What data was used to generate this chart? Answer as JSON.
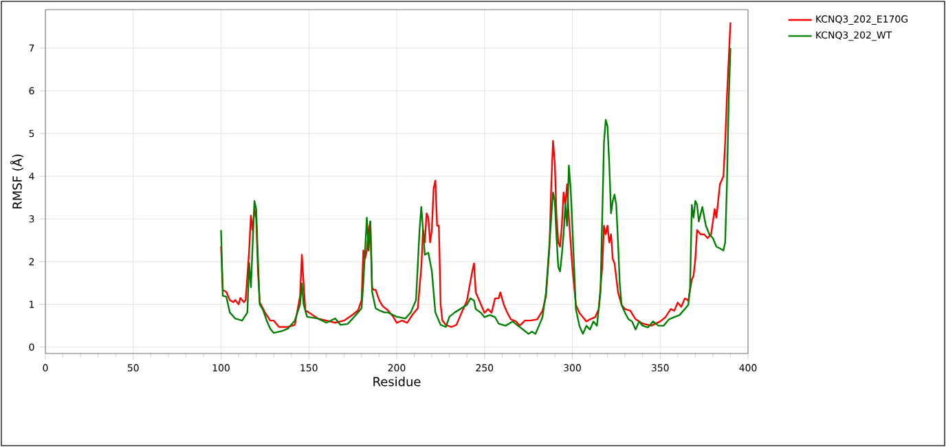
{
  "chart_data": {
    "type": "line",
    "xlabel": "Residue",
    "ylabel": "RMSF (Å)",
    "xlim": [
      0,
      400
    ],
    "xticks": [
      0,
      50,
      100,
      150,
      200,
      250,
      300,
      350,
      400
    ],
    "ylim": [
      -0.15,
      7.9
    ],
    "yticks": [
      0,
      1,
      2,
      3,
      4,
      5,
      6,
      7
    ],
    "grid": true,
    "legend": "top right",
    "marker": "none",
    "line_style": "solid",
    "series": [
      {
        "name": "KCNQ3_202_E170G",
        "color": "#ff0000",
        "x": [
          100,
          101,
          103,
          105,
          107,
          108,
          110,
          111,
          113,
          114,
          116,
          117,
          118,
          119,
          120,
          121,
          122,
          125,
          128,
          130,
          133,
          138,
          142,
          145,
          146,
          147,
          148,
          150,
          155,
          160,
          165,
          170,
          175,
          178,
          180,
          181,
          182,
          183,
          184,
          185,
          186,
          187,
          188,
          190,
          192,
          195,
          198,
          200,
          203,
          206,
          209,
          212,
          214,
          215,
          216,
          217,
          218,
          219,
          220,
          221,
          222,
          223,
          224,
          225,
          226,
          228,
          231,
          234,
          237,
          240,
          243,
          244,
          245,
          247,
          250,
          252,
          254,
          256,
          258,
          259,
          261,
          263,
          265,
          268,
          270,
          273,
          276,
          280,
          283,
          285,
          287,
          288,
          289,
          290,
          291,
          292,
          293,
          294,
          295,
          296,
          297,
          298,
          299,
          300,
          302,
          304,
          306,
          308,
          310,
          313,
          315,
          317,
          318,
          319,
          320,
          321,
          322,
          323,
          324,
          326,
          328,
          330,
          333,
          336,
          340,
          345,
          350,
          353,
          356,
          358,
          360,
          362,
          364,
          366,
          368,
          369,
          370,
          371,
          373,
          375,
          377,
          379,
          381,
          382,
          384,
          386,
          387,
          388,
          390
        ],
        "values": [
          2.36,
          1.34,
          1.29,
          1.1,
          1.05,
          1.1,
          1.0,
          1.15,
          1.05,
          1.1,
          2.26,
          3.08,
          2.74,
          3.23,
          3.03,
          1.78,
          1.05,
          0.81,
          0.62,
          0.62,
          0.47,
          0.47,
          0.52,
          1.2,
          2.16,
          1.49,
          0.86,
          0.81,
          0.67,
          0.62,
          0.57,
          0.62,
          0.76,
          0.86,
          1.1,
          2.26,
          2.07,
          2.26,
          2.74,
          2.94,
          1.39,
          1.34,
          1.34,
          1.1,
          0.96,
          0.86,
          0.71,
          0.57,
          0.62,
          0.57,
          0.76,
          0.91,
          1.87,
          2.74,
          2.45,
          3.13,
          3.03,
          2.45,
          2.74,
          3.71,
          3.9,
          2.84,
          2.84,
          1.0,
          0.62,
          0.52,
          0.47,
          0.52,
          0.81,
          1.09,
          1.77,
          1.96,
          1.28,
          1.09,
          0.8,
          0.89,
          0.8,
          1.14,
          1.14,
          1.28,
          0.99,
          0.8,
          0.65,
          0.6,
          0.5,
          0.62,
          0.62,
          0.65,
          0.85,
          1.19,
          2.35,
          3.81,
          4.83,
          4.3,
          3.03,
          2.45,
          2.35,
          2.84,
          3.62,
          3.33,
          3.81,
          3.03,
          2.45,
          1.87,
          0.99,
          0.8,
          0.7,
          0.6,
          0.65,
          0.7,
          0.89,
          1.87,
          2.84,
          2.64,
          2.84,
          2.45,
          2.64,
          2.06,
          1.96,
          1.28,
          0.99,
          0.89,
          0.85,
          0.65,
          0.55,
          0.5,
          0.6,
          0.7,
          0.89,
          0.85,
          1.04,
          0.94,
          1.14,
          1.09,
          1.58,
          1.67,
          2.06,
          2.74,
          2.64,
          2.64,
          2.55,
          2.64,
          3.23,
          3.03,
          3.81,
          4.0,
          4.79,
          5.86,
          7.6
        ]
      },
      {
        "name": "KCNQ3_202_WT",
        "color": "#008000",
        "x": [
          100,
          101,
          103,
          105,
          108,
          112,
          115,
          116,
          117,
          119,
          120,
          121,
          122,
          124,
          126,
          128,
          130,
          135,
          138,
          142,
          145,
          146,
          147,
          149,
          155,
          160,
          165,
          168,
          172,
          175,
          178,
          180,
          181,
          183,
          184,
          185,
          186,
          188,
          190,
          193,
          195,
          200,
          205,
          208,
          211,
          213,
          214,
          215,
          216,
          218,
          220,
          222,
          225,
          228,
          230,
          233,
          240,
          242,
          244,
          245,
          248,
          250,
          253,
          256,
          258,
          262,
          266,
          269,
          272,
          275,
          277,
          279,
          281,
          283,
          285,
          287,
          289,
          290,
          291,
          292,
          293,
          294,
          295,
          296,
          297,
          298,
          299,
          300,
          301,
          302,
          304,
          306,
          308,
          310,
          312,
          314,
          316,
          317,
          318,
          319,
          320,
          321,
          322,
          323,
          324,
          325,
          326,
          327,
          328,
          330,
          332,
          334,
          336,
          338,
          340,
          343,
          346,
          349,
          352,
          355,
          358,
          361,
          364,
          366,
          367,
          368,
          369,
          370,
          371,
          372,
          374,
          376,
          378,
          380,
          382,
          384,
          386,
          387,
          388,
          389,
          390
        ],
        "values": [
          2.74,
          1.2,
          1.18,
          0.81,
          0.67,
          0.62,
          0.81,
          1.97,
          1.4,
          3.42,
          3.23,
          2.07,
          1.0,
          0.86,
          0.62,
          0.43,
          0.33,
          0.38,
          0.43,
          0.62,
          1.0,
          1.49,
          1.0,
          0.71,
          0.67,
          0.57,
          0.67,
          0.52,
          0.54,
          0.67,
          0.81,
          0.91,
          1.49,
          3.03,
          2.26,
          2.94,
          1.29,
          0.91,
          0.86,
          0.81,
          0.81,
          0.71,
          0.67,
          0.81,
          1.1,
          2.74,
          3.28,
          2.74,
          2.16,
          2.21,
          1.78,
          0.81,
          0.52,
          0.47,
          0.71,
          0.81,
          0.99,
          1.14,
          1.09,
          0.89,
          0.8,
          0.7,
          0.75,
          0.7,
          0.55,
          0.5,
          0.6,
          0.5,
          0.41,
          0.31,
          0.36,
          0.31,
          0.5,
          0.7,
          1.28,
          2.45,
          3.62,
          3.42,
          2.55,
          1.87,
          1.77,
          2.16,
          2.64,
          3.33,
          2.84,
          4.25,
          3.72,
          2.84,
          1.87,
          0.89,
          0.5,
          0.31,
          0.5,
          0.41,
          0.6,
          0.5,
          1.28,
          3.03,
          4.79,
          5.32,
          5.17,
          4.3,
          3.13,
          3.42,
          3.57,
          3.33,
          2.45,
          1.48,
          0.99,
          0.8,
          0.65,
          0.6,
          0.41,
          0.6,
          0.5,
          0.46,
          0.6,
          0.5,
          0.5,
          0.65,
          0.7,
          0.75,
          0.89,
          0.99,
          1.38,
          3.33,
          3.03,
          3.42,
          3.33,
          2.94,
          3.28,
          2.84,
          2.64,
          2.55,
          2.35,
          2.31,
          2.26,
          2.45,
          3.81,
          5.76,
          7.0
        ]
      }
    ]
  }
}
